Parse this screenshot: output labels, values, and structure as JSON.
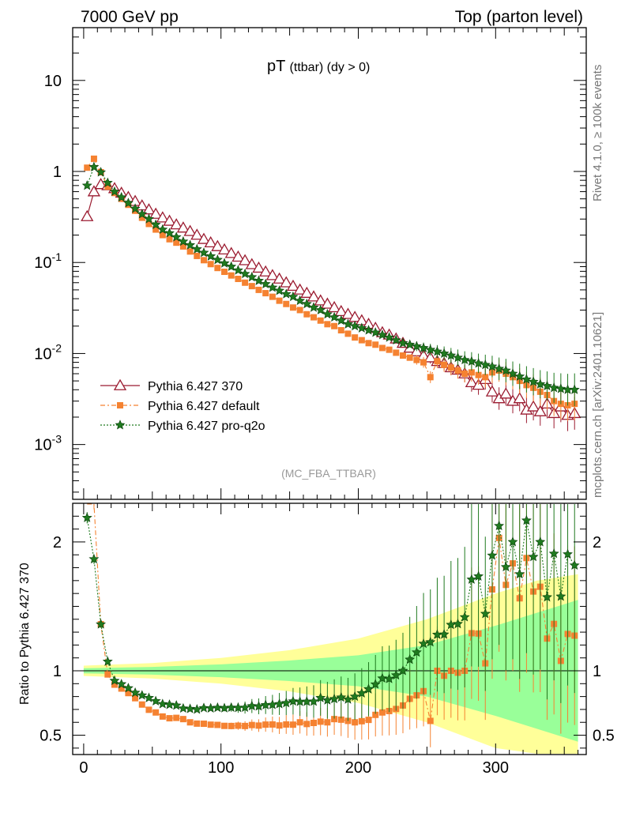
{
  "header": {
    "left": "7000 GeV pp",
    "right": "Top (parton level)"
  },
  "side_labels": {
    "top": "Rivet 4.1.0, ≥ 100k events",
    "bottom": "mcplots.cern.ch [arXiv:2401.10621]"
  },
  "chart_data": {
    "type": "line",
    "title_main": "pT",
    "title_sub": "(ttbar) (dy > 0)",
    "analysis": "(MC_FBA_TTBAR)",
    "xlabel": "",
    "ylabel": "",
    "ratio_ylabel": "Ratio to Pythia 6.427 370",
    "xlim": [
      -8,
      366
    ],
    "ylim_log": [
      0.00025,
      38
    ],
    "ratio_ylim": [
      0.35,
      2.3
    ],
    "x_ticks": [
      "0",
      "100",
      "200",
      "300"
    ],
    "y_ticks": [
      "10",
      "1",
      "10^-1",
      "10^-2",
      "10^-3"
    ],
    "ratio_ticks": [
      "2",
      "1",
      "0.5"
    ],
    "series": [
      {
        "name": "Pythia 6.427 370",
        "color": "#9b1b30",
        "marker": "open-triangle",
        "values": [
          [
            2.5,
            0.32
          ],
          [
            7.5,
            0.6
          ],
          [
            12.5,
            0.72
          ],
          [
            17.5,
            0.7
          ],
          [
            22.5,
            0.65
          ],
          [
            27.5,
            0.58
          ],
          [
            32.5,
            0.52
          ],
          [
            37.5,
            0.47
          ],
          [
            42.5,
            0.42
          ],
          [
            47.5,
            0.38
          ],
          [
            52.5,
            0.34
          ],
          [
            57.5,
            0.31
          ],
          [
            62.5,
            0.285
          ],
          [
            67.5,
            0.26
          ],
          [
            72.5,
            0.24
          ],
          [
            77.5,
            0.22
          ],
          [
            82.5,
            0.2
          ],
          [
            87.5,
            0.18
          ],
          [
            92.5,
            0.165
          ],
          [
            97.5,
            0.15
          ],
          [
            102.5,
            0.138
          ],
          [
            107.5,
            0.126
          ],
          [
            112.5,
            0.115
          ],
          [
            117.5,
            0.105
          ],
          [
            122.5,
            0.095
          ],
          [
            127.5,
            0.087
          ],
          [
            132.5,
            0.079
          ],
          [
            137.5,
            0.072
          ],
          [
            142.5,
            0.066
          ],
          [
            147.5,
            0.06
          ],
          [
            152.5,
            0.055
          ],
          [
            157.5,
            0.05
          ],
          [
            162.5,
            0.046
          ],
          [
            167.5,
            0.042
          ],
          [
            172.5,
            0.038
          ],
          [
            177.5,
            0.035
          ],
          [
            182.5,
            0.032
          ],
          [
            187.5,
            0.029
          ],
          [
            192.5,
            0.027
          ],
          [
            197.5,
            0.025
          ],
          [
            202.5,
            0.023
          ],
          [
            207.5,
            0.021
          ],
          [
            212.5,
            0.019
          ],
          [
            217.5,
            0.017
          ],
          [
            222.5,
            0.016
          ],
          [
            227.5,
            0.0145
          ],
          [
            232.5,
            0.013
          ],
          [
            237.5,
            0.0115
          ],
          [
            242.5,
            0.0105
          ],
          [
            247.5,
            0.0095
          ],
          [
            252.5,
            0.009
          ],
          [
            257.5,
            0.0082
          ],
          [
            262.5,
            0.0078
          ],
          [
            267.5,
            0.007
          ],
          [
            272.5,
            0.0066
          ],
          [
            277.5,
            0.006
          ],
          [
            282.5,
            0.0048
          ],
          [
            287.5,
            0.0045
          ],
          [
            292.5,
            0.0052
          ],
          [
            297.5,
            0.0038
          ],
          [
            302.5,
            0.0032
          ],
          [
            307.5,
            0.0036
          ],
          [
            312.5,
            0.003
          ],
          [
            317.5,
            0.0032
          ],
          [
            322.5,
            0.0024
          ],
          [
            327.5,
            0.0026
          ],
          [
            332.5,
            0.0023
          ],
          [
            337.5,
            0.0028
          ],
          [
            342.5,
            0.0022
          ],
          [
            347.5,
            0.0026
          ],
          [
            352.5,
            0.0021
          ],
          [
            357.5,
            0.0022
          ]
        ]
      },
      {
        "name": "Pythia 6.427 default",
        "color": "#f58231",
        "marker": "square",
        "values": [
          [
            2.5,
            1.1
          ],
          [
            7.5,
            1.38
          ],
          [
            12.5,
            0.98
          ],
          [
            17.5,
            0.68
          ],
          [
            22.5,
            0.58
          ],
          [
            27.5,
            0.5
          ],
          [
            32.5,
            0.43
          ],
          [
            37.5,
            0.37
          ],
          [
            42.5,
            0.31
          ],
          [
            47.5,
            0.265
          ],
          [
            52.5,
            0.23
          ],
          [
            57.5,
            0.2
          ],
          [
            62.5,
            0.18
          ],
          [
            67.5,
            0.165
          ],
          [
            72.5,
            0.15
          ],
          [
            77.5,
            0.132
          ],
          [
            82.5,
            0.118
          ],
          [
            87.5,
            0.106
          ],
          [
            92.5,
            0.096
          ],
          [
            97.5,
            0.087
          ],
          [
            102.5,
            0.079
          ],
          [
            107.5,
            0.072
          ],
          [
            112.5,
            0.066
          ],
          [
            117.5,
            0.06
          ],
          [
            122.5,
            0.055
          ],
          [
            127.5,
            0.05
          ],
          [
            132.5,
            0.046
          ],
          [
            137.5,
            0.042
          ],
          [
            142.5,
            0.038
          ],
          [
            147.5,
            0.035
          ],
          [
            152.5,
            0.032
          ],
          [
            157.5,
            0.03
          ],
          [
            162.5,
            0.027
          ],
          [
            167.5,
            0.025
          ],
          [
            172.5,
            0.023
          ],
          [
            177.5,
            0.021
          ],
          [
            182.5,
            0.02
          ],
          [
            187.5,
            0.018
          ],
          [
            192.5,
            0.0165
          ],
          [
            197.5,
            0.015
          ],
          [
            202.5,
            0.014
          ],
          [
            207.5,
            0.013
          ],
          [
            212.5,
            0.0125
          ],
          [
            217.5,
            0.0115
          ],
          [
            222.5,
            0.011
          ],
          [
            227.5,
            0.0102
          ],
          [
            232.5,
            0.0095
          ],
          [
            237.5,
            0.009
          ],
          [
            242.5,
            0.0085
          ],
          [
            247.5,
            0.008
          ],
          [
            252.5,
            0.0055
          ],
          [
            257.5,
            0.0082
          ],
          [
            262.5,
            0.0075
          ],
          [
            267.5,
            0.007
          ],
          [
            272.5,
            0.0065
          ],
          [
            277.5,
            0.006
          ],
          [
            282.5,
            0.0062
          ],
          [
            287.5,
            0.0058
          ],
          [
            292.5,
            0.0055
          ],
          [
            297.5,
            0.0062
          ],
          [
            302.5,
            0.0065
          ],
          [
            307.5,
            0.006
          ],
          [
            312.5,
            0.0055
          ],
          [
            317.5,
            0.005
          ],
          [
            322.5,
            0.0045
          ],
          [
            327.5,
            0.0042
          ],
          [
            332.5,
            0.0038
          ],
          [
            337.5,
            0.0035
          ],
          [
            342.5,
            0.003
          ],
          [
            347.5,
            0.0028
          ],
          [
            352.5,
            0.0027
          ],
          [
            357.5,
            0.0028
          ]
        ]
      },
      {
        "name": "Pythia 6.427 pro-q2o",
        "color": "#1f7a1f",
        "marker": "star",
        "values": [
          [
            2.5,
            0.7
          ],
          [
            7.5,
            1.12
          ],
          [
            12.5,
            0.98
          ],
          [
            17.5,
            0.75
          ],
          [
            22.5,
            0.6
          ],
          [
            27.5,
            0.52
          ],
          [
            32.5,
            0.45
          ],
          [
            37.5,
            0.39
          ],
          [
            42.5,
            0.34
          ],
          [
            47.5,
            0.3
          ],
          [
            52.5,
            0.26
          ],
          [
            57.5,
            0.23
          ],
          [
            62.5,
            0.21
          ],
          [
            67.5,
            0.19
          ],
          [
            72.5,
            0.17
          ],
          [
            77.5,
            0.155
          ],
          [
            82.5,
            0.14
          ],
          [
            87.5,
            0.128
          ],
          [
            92.5,
            0.117
          ],
          [
            97.5,
            0.107
          ],
          [
            102.5,
            0.098
          ],
          [
            107.5,
            0.09
          ],
          [
            112.5,
            0.082
          ],
          [
            117.5,
            0.075
          ],
          [
            122.5,
            0.069
          ],
          [
            127.5,
            0.063
          ],
          [
            132.5,
            0.058
          ],
          [
            137.5,
            0.053
          ],
          [
            142.5,
            0.049
          ],
          [
            147.5,
            0.045
          ],
          [
            152.5,
            0.042
          ],
          [
            157.5,
            0.038
          ],
          [
            162.5,
            0.035
          ],
          [
            167.5,
            0.032
          ],
          [
            172.5,
            0.03
          ],
          [
            177.5,
            0.027
          ],
          [
            182.5,
            0.025
          ],
          [
            187.5,
            0.023
          ],
          [
            192.5,
            0.021
          ],
          [
            197.5,
            0.02
          ],
          [
            202.5,
            0.019
          ],
          [
            207.5,
            0.018
          ],
          [
            212.5,
            0.017
          ],
          [
            217.5,
            0.016
          ],
          [
            222.5,
            0.015
          ],
          [
            227.5,
            0.014
          ],
          [
            232.5,
            0.013
          ],
          [
            237.5,
            0.0125
          ],
          [
            242.5,
            0.012
          ],
          [
            247.5,
            0.0115
          ],
          [
            252.5,
            0.011
          ],
          [
            257.5,
            0.0105
          ],
          [
            262.5,
            0.01
          ],
          [
            267.5,
            0.0095
          ],
          [
            272.5,
            0.009
          ],
          [
            277.5,
            0.0085
          ],
          [
            282.5,
            0.0082
          ],
          [
            287.5,
            0.0078
          ],
          [
            292.5,
            0.0075
          ],
          [
            297.5,
            0.0072
          ],
          [
            302.5,
            0.0068
          ],
          [
            307.5,
            0.0065
          ],
          [
            312.5,
            0.006
          ],
          [
            317.5,
            0.0056
          ],
          [
            322.5,
            0.0052
          ],
          [
            327.5,
            0.0049
          ],
          [
            332.5,
            0.0046
          ],
          [
            337.5,
            0.0044
          ],
          [
            342.5,
            0.0042
          ],
          [
            347.5,
            0.0041
          ],
          [
            352.5,
            0.004
          ],
          [
            357.5,
            0.004
          ]
        ]
      }
    ],
    "ratio_band": {
      "x_edges": [
        0,
        50,
        100,
        150,
        200,
        250,
        300,
        330,
        360
      ],
      "green_halfwidth": [
        0.02,
        0.03,
        0.05,
        0.08,
        0.12,
        0.2,
        0.35,
        0.45,
        0.55
      ],
      "yellow_halfwidth": [
        0.04,
        0.06,
        0.1,
        0.16,
        0.25,
        0.4,
        0.6,
        0.7,
        0.75
      ]
    },
    "legend": [
      "Pythia 6.427 370",
      "Pythia 6.427 default",
      "Pythia 6.427 pro-q2o"
    ]
  }
}
